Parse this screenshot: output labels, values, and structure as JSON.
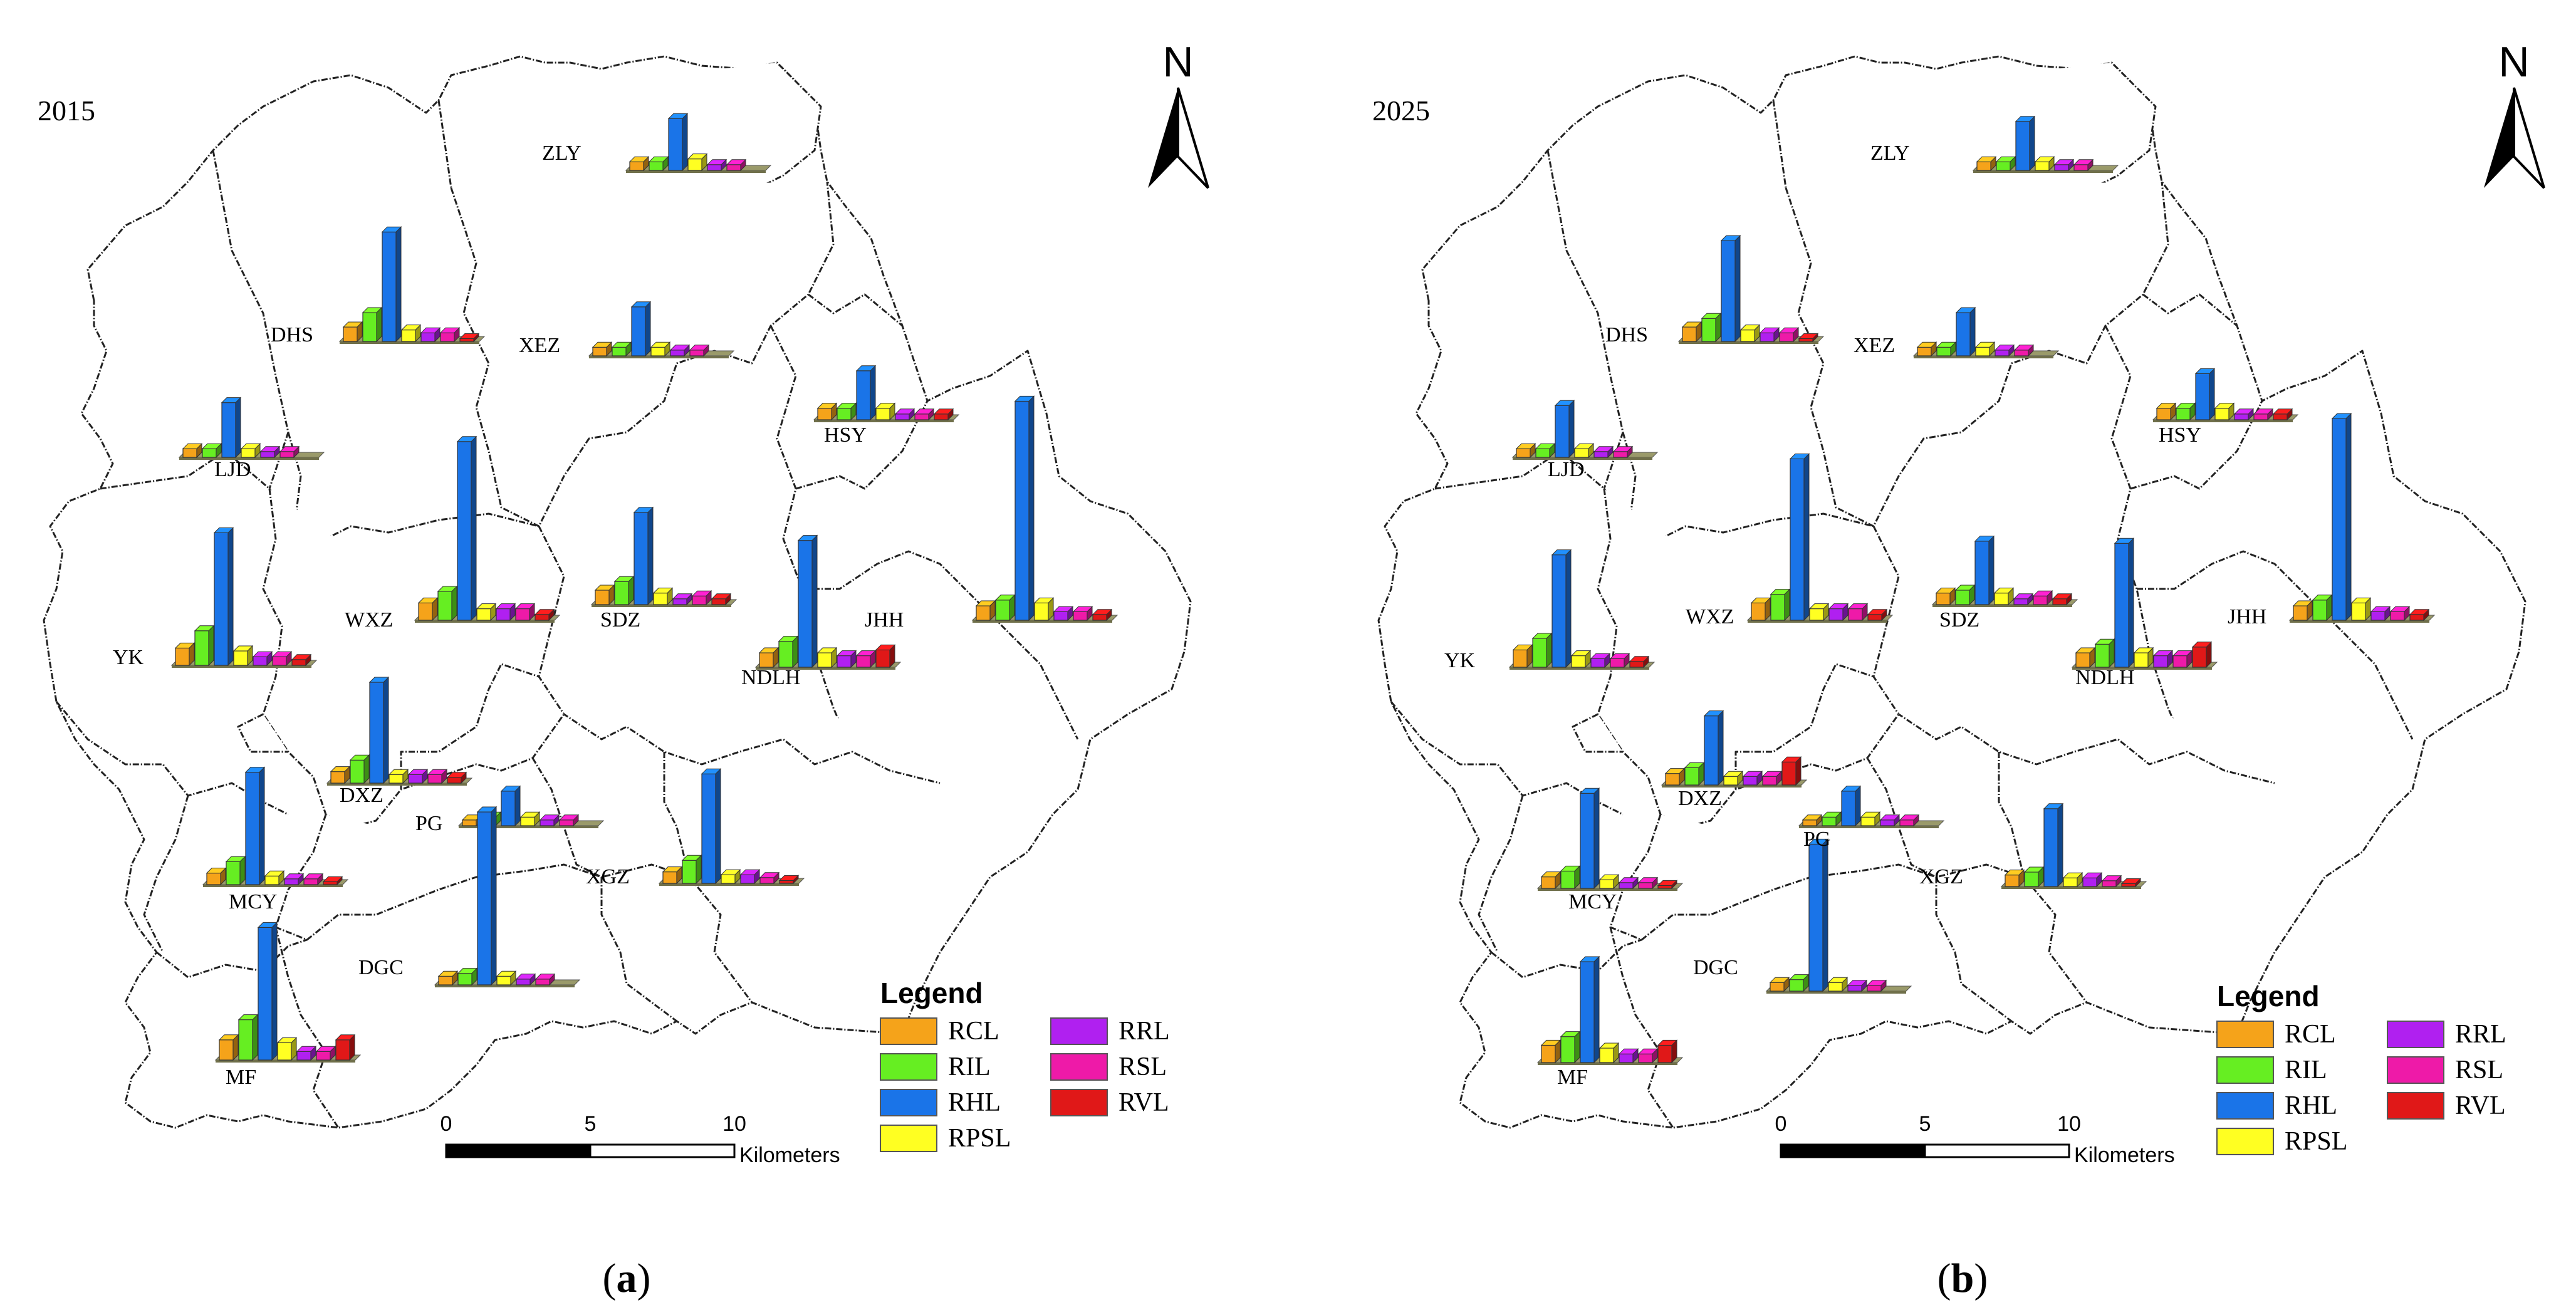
{
  "panels": [
    {
      "year_label": "2015",
      "caption_letter": "a",
      "towns": [
        {
          "name": "ZLY",
          "values": {
            "RCL": 0.3,
            "RIL": 0.3,
            "RHL": 1.8,
            "RPSL": 0.4,
            "RRL": 0.2,
            "RSL": 0.2,
            "RVL": 0.0
          }
        },
        {
          "name": "DHS",
          "values": {
            "RCL": 0.5,
            "RIL": 1.0,
            "RHL": 3.8,
            "RPSL": 0.4,
            "RRL": 0.3,
            "RSL": 0.3,
            "RVL": 0.1
          }
        },
        {
          "name": "XEZ",
          "values": {
            "RCL": 0.3,
            "RIL": 0.3,
            "RHL": 1.7,
            "RPSL": 0.3,
            "RRL": 0.2,
            "RSL": 0.2,
            "RVL": 0.0
          }
        },
        {
          "name": "HSY",
          "values": {
            "RCL": 0.4,
            "RIL": 0.4,
            "RHL": 1.7,
            "RPSL": 0.4,
            "RRL": 0.2,
            "RSL": 0.2,
            "RVL": 0.2
          }
        },
        {
          "name": "LJD",
          "values": {
            "RCL": 0.3,
            "RIL": 0.3,
            "RHL": 1.9,
            "RPSL": 0.3,
            "RRL": 0.2,
            "RSL": 0.2,
            "RVL": 0.0
          }
        },
        {
          "name": "WXZ",
          "values": {
            "RCL": 0.6,
            "RIL": 1.0,
            "RHL": 6.2,
            "RPSL": 0.4,
            "RRL": 0.4,
            "RSL": 0.4,
            "RVL": 0.2
          }
        },
        {
          "name": "SDZ",
          "values": {
            "RCL": 0.5,
            "RIL": 0.8,
            "RHL": 3.2,
            "RPSL": 0.4,
            "RRL": 0.2,
            "RSL": 0.3,
            "RVL": 0.2
          }
        },
        {
          "name": "JHH",
          "values": {
            "RCL": 0.5,
            "RIL": 0.7,
            "RHL": 7.6,
            "RPSL": 0.6,
            "RRL": 0.3,
            "RSL": 0.3,
            "RVL": 0.2
          }
        },
        {
          "name": "YK",
          "values": {
            "RCL": 0.6,
            "RIL": 1.2,
            "RHL": 4.6,
            "RPSL": 0.5,
            "RRL": 0.3,
            "RSL": 0.3,
            "RVL": 0.2
          }
        },
        {
          "name": "NDLH",
          "values": {
            "RCL": 0.5,
            "RIL": 0.9,
            "RHL": 4.4,
            "RPSL": 0.5,
            "RRL": 0.4,
            "RSL": 0.4,
            "RVL": 0.6
          }
        },
        {
          "name": "DXZ",
          "values": {
            "RCL": 0.4,
            "RIL": 0.8,
            "RHL": 3.5,
            "RPSL": 0.3,
            "RRL": 0.3,
            "RSL": 0.3,
            "RVL": 0.2
          }
        },
        {
          "name": "PG",
          "values": {
            "RCL": 0.2,
            "RIL": 0.3,
            "RHL": 1.2,
            "RPSL": 0.3,
            "RRL": 0.2,
            "RSL": 0.2,
            "RVL": 0.0
          }
        },
        {
          "name": "MCY",
          "values": {
            "RCL": 0.4,
            "RIL": 0.8,
            "RHL": 3.9,
            "RPSL": 0.3,
            "RRL": 0.2,
            "RSL": 0.2,
            "RVL": 0.1
          }
        },
        {
          "name": "XGZ",
          "values": {
            "RCL": 0.4,
            "RIL": 0.8,
            "RHL": 3.8,
            "RPSL": 0.3,
            "RRL": 0.3,
            "RSL": 0.2,
            "RVL": 0.1
          }
        },
        {
          "name": "DGC",
          "values": {
            "RCL": 0.3,
            "RIL": 0.4,
            "RHL": 6.0,
            "RPSL": 0.3,
            "RRL": 0.2,
            "RSL": 0.2,
            "RVL": 0.0
          }
        },
        {
          "name": "MF",
          "values": {
            "RCL": 0.7,
            "RIL": 1.4,
            "RHL": 4.6,
            "RPSL": 0.6,
            "RRL": 0.3,
            "RSL": 0.3,
            "RVL": 0.7
          }
        }
      ]
    },
    {
      "year_label": "2025",
      "caption_letter": "b",
      "towns": [
        {
          "name": "ZLY",
          "values": {
            "RCL": 0.3,
            "RIL": 0.3,
            "RHL": 1.7,
            "RPSL": 0.3,
            "RRL": 0.2,
            "RSL": 0.2,
            "RVL": 0.0
          }
        },
        {
          "name": "DHS",
          "values": {
            "RCL": 0.5,
            "RIL": 0.8,
            "RHL": 3.5,
            "RPSL": 0.4,
            "RRL": 0.3,
            "RSL": 0.3,
            "RVL": 0.1
          }
        },
        {
          "name": "XEZ",
          "values": {
            "RCL": 0.3,
            "RIL": 0.3,
            "RHL": 1.5,
            "RPSL": 0.3,
            "RRL": 0.2,
            "RSL": 0.2,
            "RVL": 0.0
          }
        },
        {
          "name": "HSY",
          "values": {
            "RCL": 0.4,
            "RIL": 0.4,
            "RHL": 1.6,
            "RPSL": 0.4,
            "RRL": 0.2,
            "RSL": 0.2,
            "RVL": 0.2
          }
        },
        {
          "name": "LJD",
          "values": {
            "RCL": 0.3,
            "RIL": 0.3,
            "RHL": 1.8,
            "RPSL": 0.3,
            "RRL": 0.2,
            "RSL": 0.2,
            "RVL": 0.0
          }
        },
        {
          "name": "WXZ",
          "values": {
            "RCL": 0.6,
            "RIL": 0.9,
            "RHL": 5.6,
            "RPSL": 0.4,
            "RRL": 0.4,
            "RSL": 0.4,
            "RVL": 0.2
          }
        },
        {
          "name": "SDZ",
          "values": {
            "RCL": 0.4,
            "RIL": 0.5,
            "RHL": 2.2,
            "RPSL": 0.4,
            "RRL": 0.2,
            "RSL": 0.3,
            "RVL": 0.2
          }
        },
        {
          "name": "JHH",
          "values": {
            "RCL": 0.5,
            "RIL": 0.7,
            "RHL": 7.0,
            "RPSL": 0.6,
            "RRL": 0.3,
            "RSL": 0.3,
            "RVL": 0.2
          }
        },
        {
          "name": "YK",
          "values": {
            "RCL": 0.6,
            "RIL": 1.0,
            "RHL": 3.9,
            "RPSL": 0.4,
            "RRL": 0.3,
            "RSL": 0.3,
            "RVL": 0.2
          }
        },
        {
          "name": "NDLH",
          "values": {
            "RCL": 0.5,
            "RIL": 0.8,
            "RHL": 4.3,
            "RPSL": 0.5,
            "RRL": 0.4,
            "RSL": 0.4,
            "RVL": 0.7
          }
        },
        {
          "name": "DXZ",
          "values": {
            "RCL": 0.4,
            "RIL": 0.6,
            "RHL": 2.4,
            "RPSL": 0.3,
            "RRL": 0.3,
            "RSL": 0.3,
            "RVL": 0.8
          }
        },
        {
          "name": "PG",
          "values": {
            "RCL": 0.2,
            "RIL": 0.3,
            "RHL": 1.2,
            "RPSL": 0.3,
            "RRL": 0.2,
            "RSL": 0.2,
            "RVL": 0.0
          }
        },
        {
          "name": "MCY",
          "values": {
            "RCL": 0.4,
            "RIL": 0.6,
            "RHL": 3.3,
            "RPSL": 0.3,
            "RRL": 0.2,
            "RSL": 0.2,
            "RVL": 0.1
          }
        },
        {
          "name": "XGZ",
          "values": {
            "RCL": 0.4,
            "RIL": 0.5,
            "RHL": 2.7,
            "RPSL": 0.3,
            "RRL": 0.3,
            "RSL": 0.2,
            "RVL": 0.1
          }
        },
        {
          "name": "DGC",
          "values": {
            "RCL": 0.3,
            "RIL": 0.4,
            "RHL": 5.1,
            "RPSL": 0.3,
            "RRL": 0.2,
            "RSL": 0.2,
            "RVL": 0.0
          }
        },
        {
          "name": "MF",
          "values": {
            "RCL": 0.6,
            "RIL": 0.9,
            "RHL": 3.5,
            "RPSL": 0.5,
            "RRL": 0.3,
            "RSL": 0.3,
            "RVL": 0.6
          }
        }
      ]
    }
  ],
  "legend": {
    "title": "Legend",
    "items": [
      {
        "code": "RCL",
        "color": "#f5a31a"
      },
      {
        "code": "RIL",
        "color": "#66ee22"
      },
      {
        "code": "RHL",
        "color": "#1a74e8"
      },
      {
        "code": "RPSL",
        "color": "#ffff22"
      },
      {
        "code": "RRL",
        "color": "#b020f0"
      },
      {
        "code": "RSL",
        "color": "#ee1aa8"
      },
      {
        "code": "RVL",
        "color": "#e01818"
      }
    ]
  },
  "scale_bar": {
    "ticks": [
      "0",
      "5",
      "10"
    ],
    "unit": "Kilometers"
  },
  "north_arrow": {
    "letter": "N",
    "icon": "north-arrow-icon"
  }
}
